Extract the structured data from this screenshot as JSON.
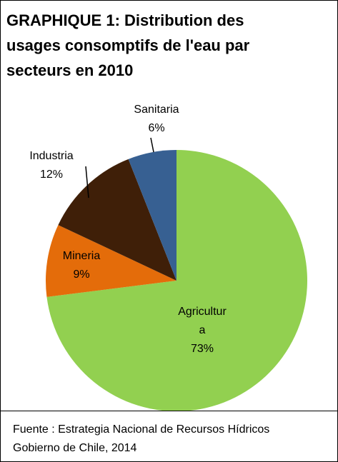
{
  "chart_data": {
    "type": "pie",
    "title": "GRAPHIQUE 1: Distribution des usages consomptifs de l'eau par secteurs en 2010",
    "categories": [
      "Agricultura",
      "Mineria",
      "Industria",
      "Sanitaria"
    ],
    "values": [
      73,
      9,
      12,
      6
    ],
    "value_labels": [
      "73%",
      "9%",
      "12%",
      "6%"
    ],
    "colors": [
      "#92d050",
      "#e46c0a",
      "#3f1f08",
      "#376092"
    ],
    "source": [
      "Fuente : Estrategia Nacional de Recursos Hídricos",
      "Gobierno de Chile, 2014"
    ]
  }
}
